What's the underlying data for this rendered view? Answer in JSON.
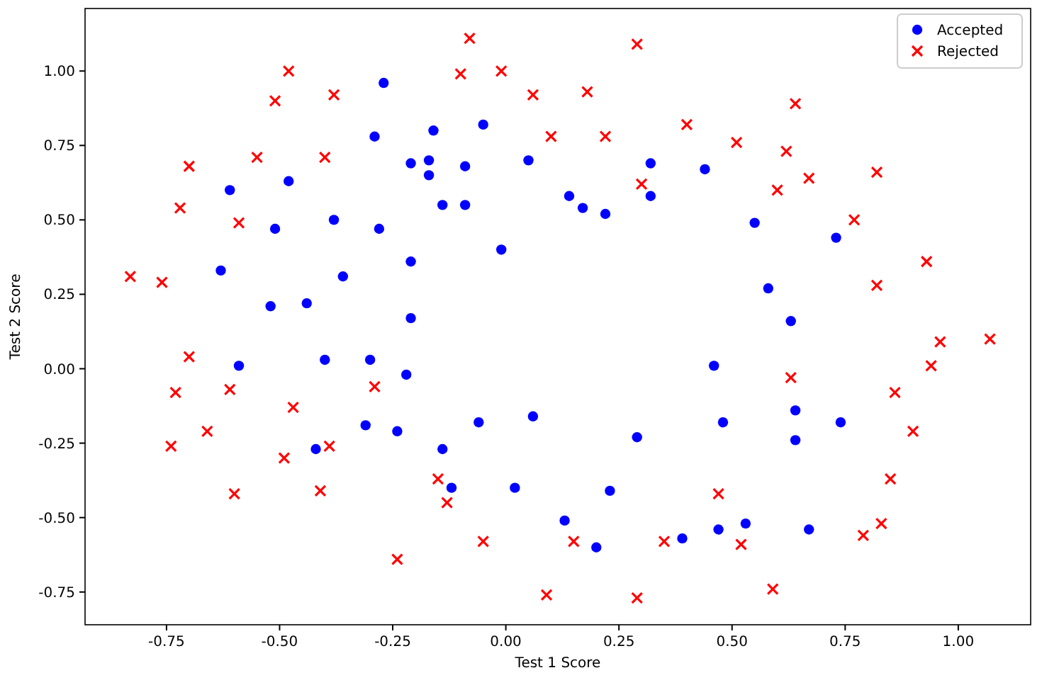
{
  "chart_data": {
    "type": "scatter",
    "xlabel": "Test 1 Score",
    "ylabel": "Test 2 Score",
    "legend": "top right",
    "grid": false,
    "xlim": [
      -0.93,
      1.16
    ],
    "ylim": [
      -0.86,
      1.21
    ],
    "xticks": [
      {
        "value": -0.75,
        "label": "-0.75"
      },
      {
        "value": -0.5,
        "label": "-0.50"
      },
      {
        "value": -0.25,
        "label": "-0.25"
      },
      {
        "value": 0,
        "label": "0.00"
      },
      {
        "value": 0.25,
        "label": "0.25"
      },
      {
        "value": 0.5,
        "label": "0.50"
      },
      {
        "value": 0.75,
        "label": "0.75"
      },
      {
        "value": 1,
        "label": "1.00"
      }
    ],
    "yticks": [
      {
        "value": -0.75,
        "label": "-0.75"
      },
      {
        "value": -0.5,
        "label": "-0.50"
      },
      {
        "value": -0.25,
        "label": "-0.25"
      },
      {
        "value": 0,
        "label": "0.00"
      },
      {
        "value": 0.25,
        "label": "0.25"
      },
      {
        "value": 0.5,
        "label": "0.50"
      },
      {
        "value": 0.75,
        "label": "0.75"
      },
      {
        "value": 1,
        "label": "1.00"
      }
    ],
    "series": [
      {
        "name": "Accepted",
        "color": "#0000ff",
        "marker": "circle",
        "x": [
          0.05,
          -0.09,
          -0.21,
          -0.38,
          -0.51,
          -0.52,
          -0.4,
          -0.31,
          0.02,
          0.13,
          0.39,
          0.53,
          0.64,
          0.74,
          0.55,
          0.32,
          0.17,
          -0.05,
          -0.17,
          -0.48,
          -0.61,
          -0.63,
          -0.59,
          -0.42,
          -0.12,
          0.2,
          0.47,
          0.67,
          -0.14,
          -0.29,
          -0.27,
          -0.16,
          -0.17,
          -0.28,
          -0.36,
          -0.3,
          -0.24,
          -0.06,
          0.06,
          0.23,
          0.29,
          0.48,
          0.64,
          0.46,
          0.63,
          0.58,
          0.73,
          0.22,
          0.44,
          0.32,
          0.14,
          -0.01,
          -0.09,
          -0.21,
          -0.21,
          -0.44,
          -0.22,
          -0.14
        ],
        "values": [
          0.7,
          0.68,
          0.69,
          0.5,
          0.47,
          0.21,
          0.03,
          -0.19,
          -0.4,
          -0.51,
          -0.57,
          -0.52,
          -0.24,
          -0.18,
          0.49,
          0.58,
          0.54,
          0.82,
          0.7,
          0.63,
          0.6,
          0.33,
          0.01,
          -0.27,
          -0.4,
          -0.6,
          -0.54,
          -0.54,
          0.55,
          0.78,
          0.96,
          0.8,
          0.65,
          0.47,
          0.31,
          0.03,
          -0.21,
          -0.18,
          -0.16,
          -0.41,
          -0.23,
          -0.18,
          -0.14,
          0.01,
          0.16,
          0.27,
          0.44,
          0.52,
          0.67,
          0.69,
          0.58,
          0.4,
          0.55,
          0.36,
          0.17,
          0.22,
          -0.02,
          -0.27
        ]
      },
      {
        "name": "Rejected",
        "color": "#ff0000",
        "marker": "cross",
        "x": [
          0.18,
          0.22,
          0.3,
          0.51,
          0.62,
          0.6,
          0.77,
          0.93,
          0.82,
          0.96,
          0.94,
          0.86,
          0.9,
          0.85,
          0.83,
          0.79,
          0.59,
          0.52,
          0.47,
          0.35,
          0.29,
          0.09,
          0.15,
          -0.13,
          -0.41,
          -0.39,
          -0.74,
          -0.7,
          -0.76,
          -0.7,
          -0.4,
          -0.38,
          -0.51,
          -0.55,
          0.1,
          0.06,
          -0.1,
          -0.08,
          0.29,
          0.4,
          0.64,
          0.82,
          0.67,
          1.07,
          -0.05,
          -0.24,
          -0.15,
          -0.49,
          -0.47,
          -0.29,
          -0.61,
          -0.66,
          -0.6,
          -0.73,
          -0.83,
          -0.72,
          -0.59,
          -0.48,
          -0.01,
          0.63
        ],
        "values": [
          0.93,
          0.78,
          0.62,
          0.76,
          0.73,
          0.6,
          0.5,
          0.36,
          0.28,
          0.09,
          0.01,
          -0.08,
          -0.21,
          -0.37,
          -0.52,
          -0.56,
          -0.74,
          -0.59,
          -0.42,
          -0.58,
          -0.77,
          -0.76,
          -0.58,
          -0.45,
          -0.41,
          -0.26,
          -0.26,
          0.04,
          0.29,
          0.68,
          0.71,
          0.92,
          0.9,
          0.71,
          0.78,
          0.92,
          0.99,
          1.11,
          1.09,
          0.82,
          0.89,
          0.66,
          0.64,
          0.1,
          -0.58,
          -0.64,
          -0.37,
          -0.3,
          -0.13,
          -0.06,
          -0.07,
          -0.21,
          -0.42,
          -0.08,
          0.31,
          0.54,
          0.49,
          1.0,
          1.0,
          -0.03
        ]
      }
    ]
  }
}
